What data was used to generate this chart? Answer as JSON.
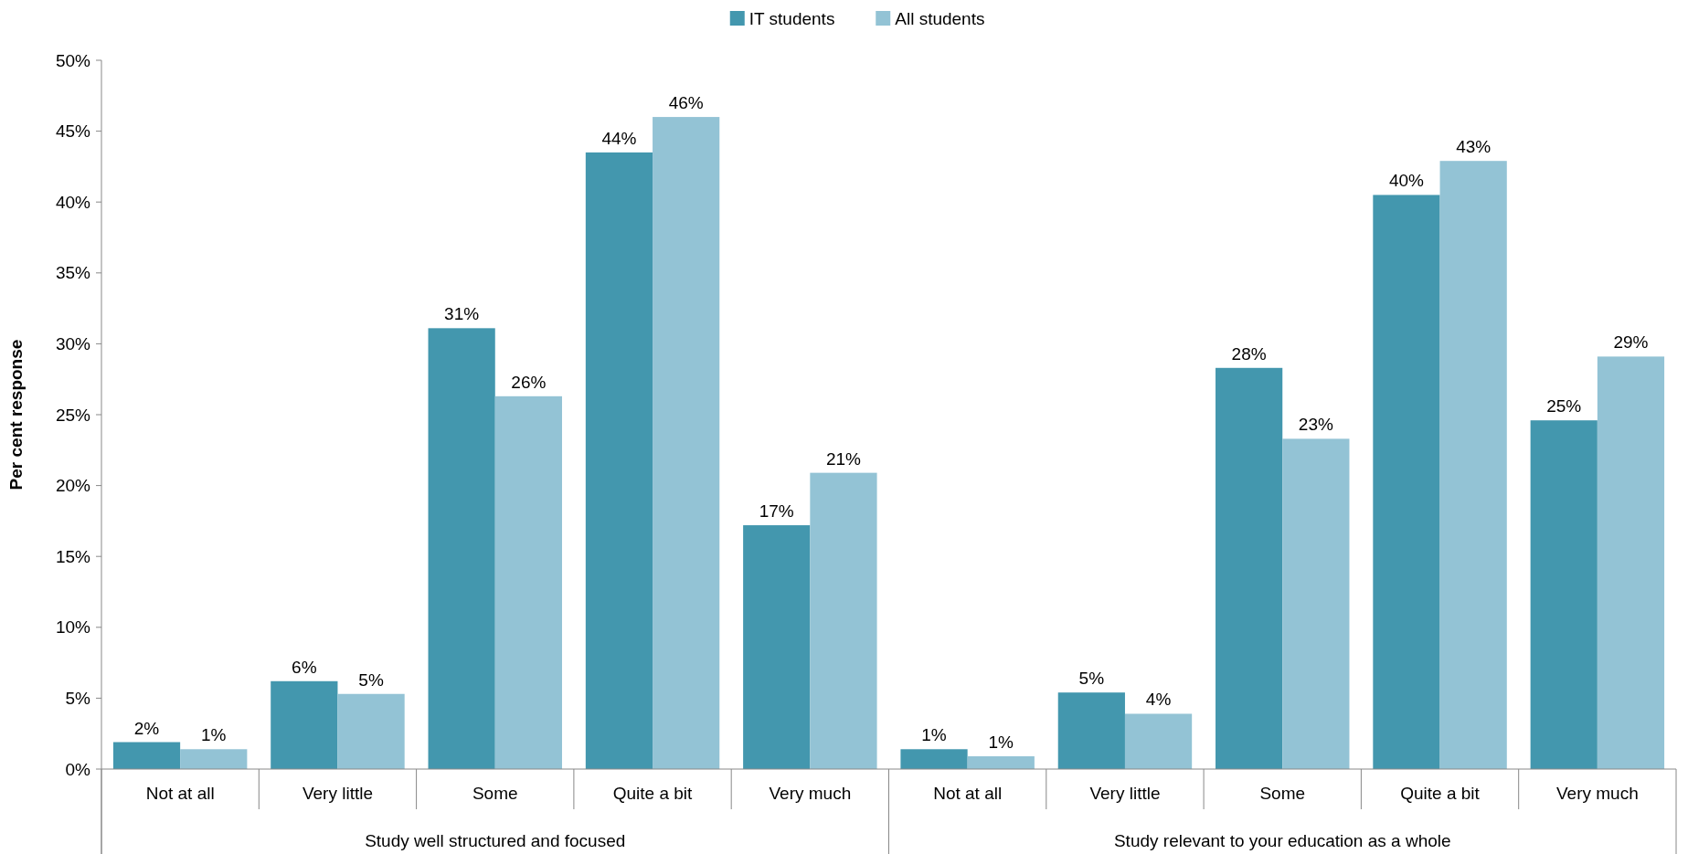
{
  "chart_data": {
    "type": "bar",
    "ylabel": "Per cent response",
    "categories": [
      "Not at all",
      "Very little",
      "Some",
      "Quite a bit",
      "Very much",
      "Not at all",
      "Very little",
      "Some",
      "Quite a bit",
      "Very much"
    ],
    "series": [
      {
        "name": "IT students",
        "color": "#4397ae",
        "values": [
          1.9,
          6.2,
          31.1,
          43.5,
          17.2,
          1.4,
          5.4,
          28.3,
          40.5,
          24.6
        ],
        "value_labels": [
          "2%",
          "6%",
          "31%",
          "44%",
          "17%",
          "1%",
          "5%",
          "28%",
          "40%",
          "25%"
        ]
      },
      {
        "name": "All students",
        "color": "#93c3d5",
        "values": [
          1.4,
          5.3,
          26.3,
          46.0,
          20.9,
          0.9,
          3.9,
          23.3,
          42.9,
          29.1
        ],
        "value_labels": [
          "1%",
          "5%",
          "26%",
          "46%",
          "21%",
          "1%",
          "4%",
          "23%",
          "43%",
          "29%"
        ]
      }
    ],
    "ylim": [
      0,
      50
    ],
    "yticks": [
      {
        "value": 0,
        "label": "0%"
      },
      {
        "value": 5,
        "label": "5%"
      },
      {
        "value": 10,
        "label": "10%"
      },
      {
        "value": 15,
        "label": "15%"
      },
      {
        "value": 20,
        "label": "20%"
      },
      {
        "value": 25,
        "label": "25%"
      },
      {
        "value": 30,
        "label": "30%"
      },
      {
        "value": 35,
        "label": "35%"
      },
      {
        "value": 40,
        "label": "40%"
      },
      {
        "value": 45,
        "label": "45%"
      },
      {
        "value": 50,
        "label": "50%"
      }
    ],
    "annotations": [
      "Study well structured and focused",
      "Study relevant to your education as a whole"
    ],
    "legend": "top",
    "grid": false
  }
}
